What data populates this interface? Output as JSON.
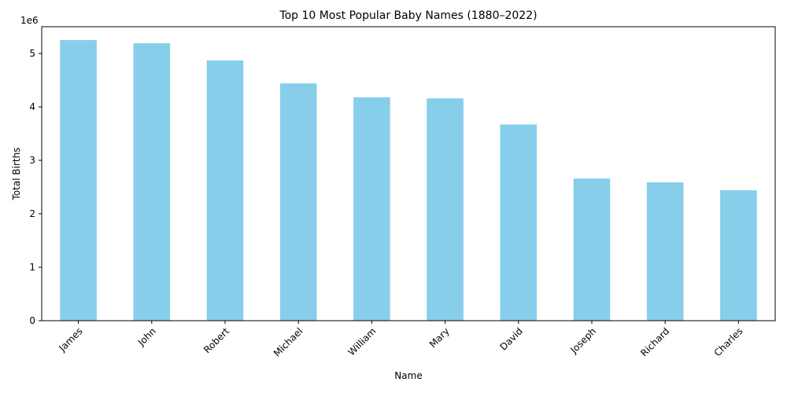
{
  "chart_data": {
    "type": "bar",
    "title": "Top 10 Most Popular Baby Names (1880–2022)",
    "xlabel": "Name",
    "ylabel": "Total Births",
    "y_offset_text": "1e6",
    "categories": [
      "James",
      "John",
      "Robert",
      "Michael",
      "William",
      "Mary",
      "David",
      "Joseph",
      "Richard",
      "Charles"
    ],
    "values": [
      5250000,
      5190000,
      4870000,
      4440000,
      4180000,
      4160000,
      3670000,
      2660000,
      2590000,
      2440000
    ],
    "ylim": [
      0,
      5500000
    ],
    "yticks": [
      0,
      1000000,
      2000000,
      3000000,
      4000000,
      5000000
    ],
    "ytick_labels": [
      "0",
      "1",
      "2",
      "3",
      "4",
      "5"
    ],
    "bar_color": "#87CEEB",
    "grid": false,
    "legend": "none"
  }
}
